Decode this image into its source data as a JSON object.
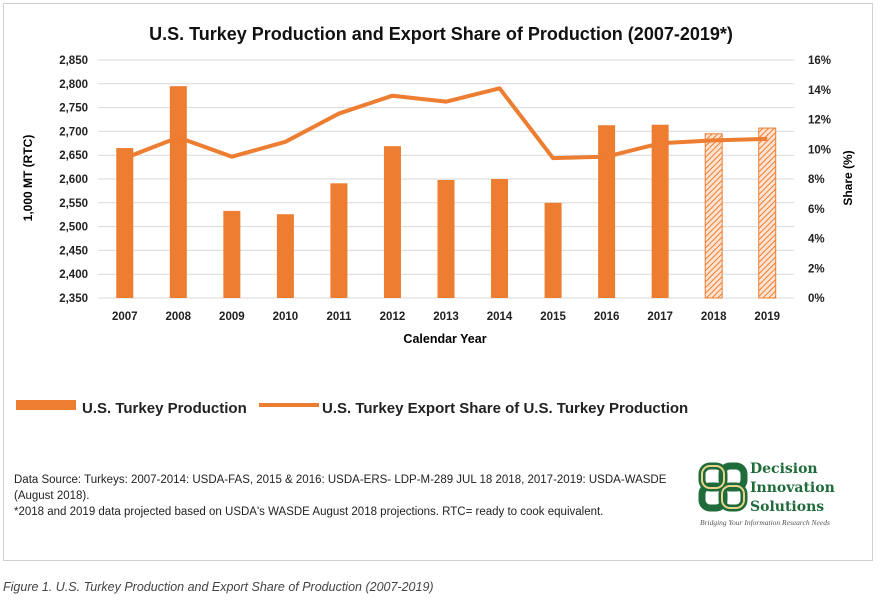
{
  "chart_data": {
    "type": "bar+line",
    "title": "U.S. Turkey Production and Export Share of Production (2007-2019*)",
    "xlabel": "Calendar Year",
    "ylabel_left": "1,000 MT (RTC)",
    "ylabel_right": "Share (%)",
    "categories": [
      "2007",
      "2008",
      "2009",
      "2010",
      "2011",
      "2012",
      "2013",
      "2014",
      "2015",
      "2016",
      "2017",
      "2018",
      "2019"
    ],
    "ylim_left": [
      2350,
      2850
    ],
    "yticks_left": [
      "2,350",
      "2,400",
      "2,450",
      "2,500",
      "2,550",
      "2,600",
      "2,650",
      "2,700",
      "2,750",
      "2,800",
      "2,850"
    ],
    "ylim_right": [
      0,
      16
    ],
    "yticks_right": [
      "0%",
      "2%",
      "4%",
      "6%",
      "8%",
      "10%",
      "12%",
      "14%",
      "16%"
    ],
    "grid": true,
    "legend_position": "bottom",
    "series": [
      {
        "name": "U.S. Turkey Production",
        "type": "bar",
        "axis": "left",
        "color": "#ed7d31",
        "values": [
          2665,
          2795,
          2533,
          2526,
          2591,
          2669,
          2598,
          2600,
          2550,
          2713,
          2714,
          2695,
          2707
        ],
        "projected": [
          false,
          false,
          false,
          false,
          false,
          false,
          false,
          false,
          false,
          false,
          false,
          true,
          true
        ]
      },
      {
        "name": "U.S. Turkey Export Share of U.S. Turkey Production",
        "type": "line",
        "axis": "right",
        "color": "#ed7d31",
        "values": [
          9.4,
          10.8,
          9.5,
          10.5,
          12.4,
          13.6,
          13.2,
          14.1,
          9.4,
          9.5,
          10.4,
          10.6,
          10.7
        ]
      }
    ]
  },
  "note": {
    "line1": "Data Source:  Turkeys: 2007-2014: USDA-FAS, 2015 & 2016: USDA-ERS- LDP-M-289 JUL 18 2018, 2017-2019: USDA-WASDE (August 2018).",
    "line2": "*2018 and 2019 data projected based on USDA's WASDE August 2018 projections. RTC= ready to cook equivalent."
  },
  "logo": {
    "name": "Decision Innovation Solutions",
    "line1": "Decision",
    "line2": "Innovation",
    "line3": "Solutions",
    "tagline": "Bridging Your Information Research Needs"
  },
  "caption": "Figure 1. U.S. Turkey Production and Export Share of Production (2007-2019)"
}
